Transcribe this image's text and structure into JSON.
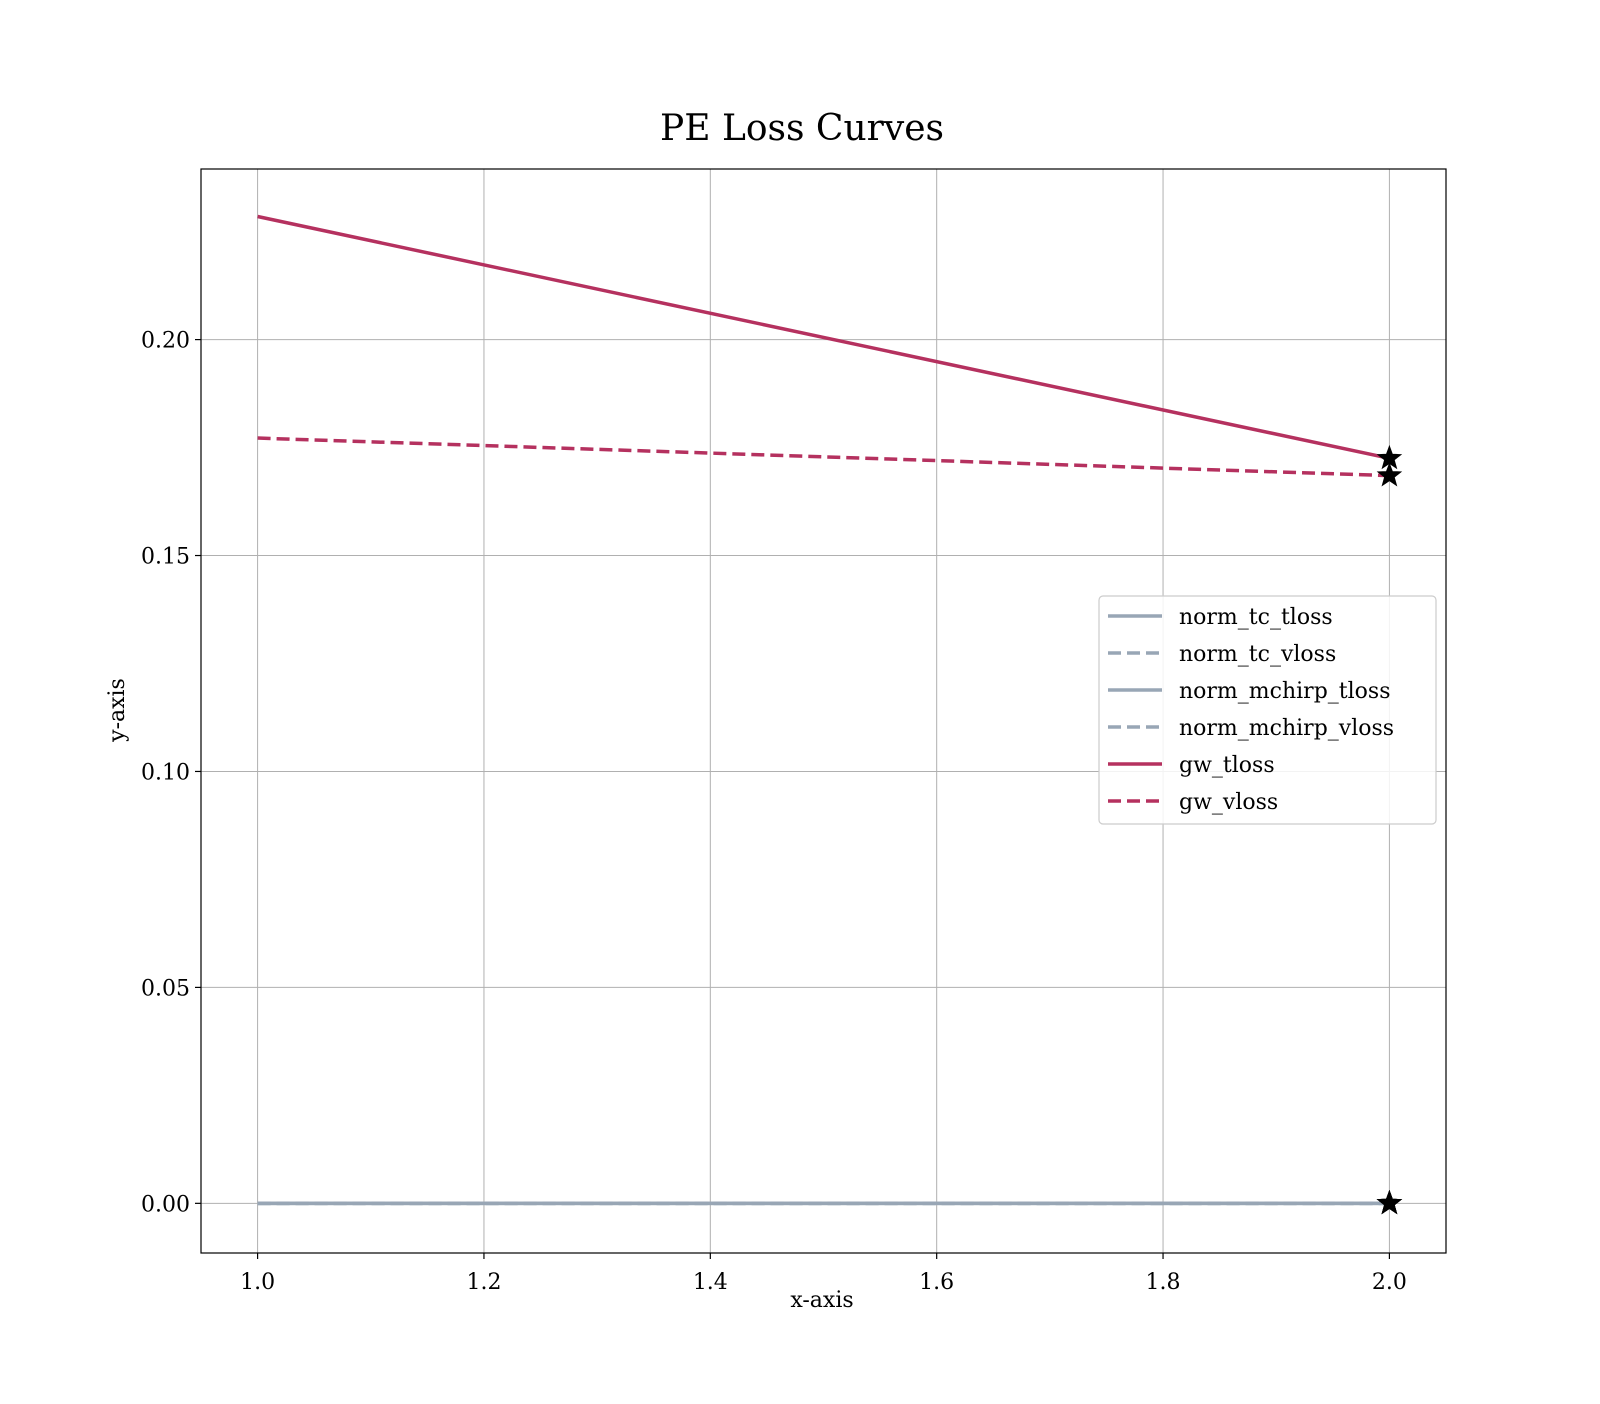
{
  "chart_data": {
    "type": "line",
    "title": "PE Loss Curves",
    "xlabel": "x-axis",
    "ylabel": "y-axis",
    "xlim": [
      0.95,
      2.05
    ],
    "ylim": [
      -0.0115,
      0.2395
    ],
    "xticks": [
      1.0,
      1.2,
      1.4,
      1.6,
      1.8,
      2.0
    ],
    "xtick_labels": [
      "1.0",
      "1.2",
      "1.4",
      "1.6",
      "1.8",
      "2.0"
    ],
    "yticks": [
      0.0,
      0.05,
      0.1,
      0.15,
      0.2
    ],
    "ytick_labels": [
      "0.00",
      "0.05",
      "0.10",
      "0.15",
      "0.20"
    ],
    "grid": true,
    "legend_position": "center-right",
    "x": [
      1.0,
      2.0
    ],
    "series": [
      {
        "name": "norm_tc_tloss",
        "values": [
          0.0,
          0.0
        ],
        "color": "#98a6b5",
        "dash": "solid",
        "final_marker": "star"
      },
      {
        "name": "norm_tc_vloss",
        "values": [
          0.0,
          0.0
        ],
        "color": "#98a6b5",
        "dash": "dashed",
        "final_marker": "star"
      },
      {
        "name": "norm_mchirp_tloss",
        "values": [
          0.0,
          0.0
        ],
        "color": "#98a6b5",
        "dash": "solid",
        "final_marker": "star"
      },
      {
        "name": "norm_mchirp_vloss",
        "values": [
          0.0,
          0.0
        ],
        "color": "#98a6b5",
        "dash": "dashed",
        "final_marker": "star"
      },
      {
        "name": "gw_tloss",
        "values": [
          0.2285,
          0.1725
        ],
        "color": "#b5315f",
        "dash": "solid",
        "final_marker": "star"
      },
      {
        "name": "gw_vloss",
        "values": [
          0.1772,
          0.1685
        ],
        "color": "#b5315f",
        "dash": "dashed",
        "final_marker": "star"
      }
    ]
  }
}
